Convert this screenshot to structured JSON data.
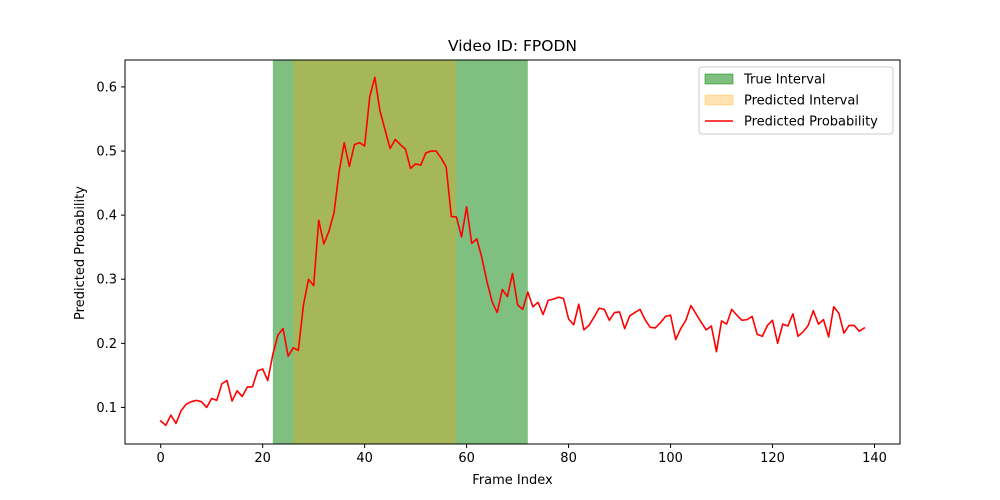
{
  "chart_data": {
    "type": "line",
    "title": "Video ID: FPODN",
    "xlabel": "Frame Index",
    "ylabel": "Predicted Probability",
    "xlim": [
      -7,
      145
    ],
    "ylim": [
      0.043,
      0.642
    ],
    "x_ticks": [
      0,
      20,
      40,
      60,
      80,
      100,
      120,
      140
    ],
    "y_ticks": [
      0.1,
      0.2,
      0.3,
      0.4,
      0.5,
      0.6
    ],
    "grid": false,
    "legend_position": "top-right",
    "intervals": [
      {
        "name": "True Interval",
        "start": 22,
        "end": 72,
        "color": "#008000",
        "opacity": 0.5
      },
      {
        "name": "Predicted Interval",
        "start": 26,
        "end": 58,
        "color": "#ffa500",
        "opacity": 0.3
      }
    ],
    "series": [
      {
        "name": "Predicted Probability",
        "color": "#ff0000",
        "x": [
          0,
          1,
          2,
          3,
          4,
          5,
          6,
          7,
          8,
          9,
          10,
          11,
          12,
          13,
          14,
          15,
          16,
          17,
          18,
          19,
          20,
          21,
          22,
          23,
          24,
          25,
          26,
          27,
          28,
          29,
          30,
          31,
          32,
          33,
          34,
          35,
          36,
          37,
          38,
          39,
          40,
          41,
          42,
          43,
          44,
          45,
          46,
          47,
          48,
          49,
          50,
          51,
          52,
          53,
          54,
          55,
          56,
          57,
          58,
          59,
          60,
          61,
          62,
          63,
          64,
          65,
          66,
          67,
          68,
          69,
          70,
          71,
          72,
          73,
          74,
          75,
          76,
          77,
          78,
          79,
          80,
          81,
          82,
          83,
          84,
          85,
          86,
          87,
          88,
          89,
          90,
          91,
          92,
          93,
          94,
          95,
          96,
          97,
          98,
          99,
          100,
          101,
          102,
          103,
          104,
          105,
          106,
          107,
          108,
          109,
          110,
          111,
          112,
          113,
          114,
          115,
          116,
          117,
          118,
          119,
          120,
          121,
          122,
          123,
          124,
          125,
          126,
          127,
          128,
          129,
          130,
          131,
          132,
          133,
          134,
          135,
          136,
          137,
          138
        ],
        "values": [
          0.079,
          0.072,
          0.088,
          0.075,
          0.095,
          0.105,
          0.109,
          0.111,
          0.109,
          0.1,
          0.114,
          0.111,
          0.137,
          0.142,
          0.11,
          0.126,
          0.117,
          0.132,
          0.132,
          0.157,
          0.16,
          0.142,
          0.183,
          0.213,
          0.223,
          0.18,
          0.193,
          0.189,
          0.26,
          0.3,
          0.29,
          0.392,
          0.355,
          0.375,
          0.404,
          0.468,
          0.513,
          0.476,
          0.51,
          0.513,
          0.508,
          0.585,
          0.615,
          0.563,
          0.533,
          0.504,
          0.518,
          0.51,
          0.503,
          0.473,
          0.48,
          0.478,
          0.497,
          0.5,
          0.5,
          0.489,
          0.475,
          0.398,
          0.397,
          0.366,
          0.413,
          0.356,
          0.363,
          0.333,
          0.296,
          0.265,
          0.248,
          0.284,
          0.273,
          0.309,
          0.26,
          0.253,
          0.28,
          0.257,
          0.264,
          0.245,
          0.267,
          0.269,
          0.272,
          0.27,
          0.238,
          0.229,
          0.261,
          0.221,
          0.228,
          0.241,
          0.255,
          0.253,
          0.236,
          0.248,
          0.249,
          0.223,
          0.243,
          0.248,
          0.253,
          0.237,
          0.225,
          0.224,
          0.232,
          0.242,
          0.244,
          0.206,
          0.223,
          0.236,
          0.259,
          0.246,
          0.233,
          0.221,
          0.227,
          0.187,
          0.235,
          0.23,
          0.253,
          0.244,
          0.236,
          0.237,
          0.242,
          0.214,
          0.211,
          0.228,
          0.236,
          0.2,
          0.23,
          0.227,
          0.246,
          0.211,
          0.218,
          0.228,
          0.251,
          0.23,
          0.237,
          0.21,
          0.257,
          0.247,
          0.216,
          0.228,
          0.228,
          0.219,
          0.224
        ]
      }
    ]
  }
}
